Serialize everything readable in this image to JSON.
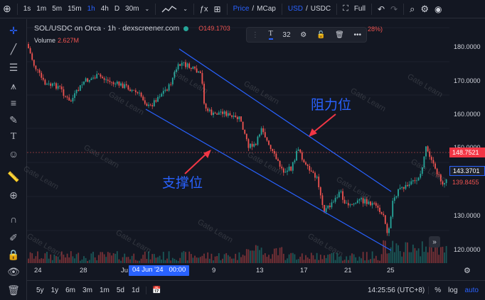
{
  "top_toolbar": {
    "intervals": [
      "1s",
      "1m",
      "5m",
      "15m",
      "1h",
      "4h",
      "D",
      "30m"
    ],
    "active_interval": "1h",
    "price_label": "Price",
    "mcap_label": "MCap",
    "usd_label": "USD",
    "pair_label": "USDC",
    "full_label": "Full"
  },
  "legend": {
    "title": "SOL/USDC on Orca · 1h · dexscreener.com",
    "ohlc_fragment": "O149.1703",
    "change_fragment": "28%)",
    "volume_label": "Volume",
    "volume_value": "2.627M"
  },
  "float_toolbar": {
    "font_size": "32"
  },
  "price_axis": {
    "ticks": [
      "180.0000",
      "170.0000",
      "160.0000",
      "150.0000",
      "140.0000",
      "130.0000",
      "120.0000"
    ],
    "tag_top": "148.7521",
    "tag_current": "143.3701",
    "tag_low": "139.8455"
  },
  "time_axis": {
    "ticks": [
      "24",
      "28",
      "Ju",
      "9",
      "13",
      "17",
      "21",
      "25"
    ],
    "crosshair": "04 Jun '24   00:00"
  },
  "annotations": {
    "resistance": "阻力位",
    "support": "支撑位"
  },
  "watermark": "Gate Learn",
  "bottom_bar": {
    "ranges": [
      "5y",
      "1y",
      "6m",
      "3m",
      "1m",
      "5d",
      "1d"
    ],
    "clock": "14:25:56 (UTC+8)",
    "percent_label": "%",
    "log_label": "log",
    "auto_label": "auto"
  },
  "colors": {
    "background": "#131722",
    "up": "#26a69a",
    "down": "#ef5350",
    "accent": "#2962ff",
    "channel": "#2962ff",
    "arrow": "#f23645"
  }
}
